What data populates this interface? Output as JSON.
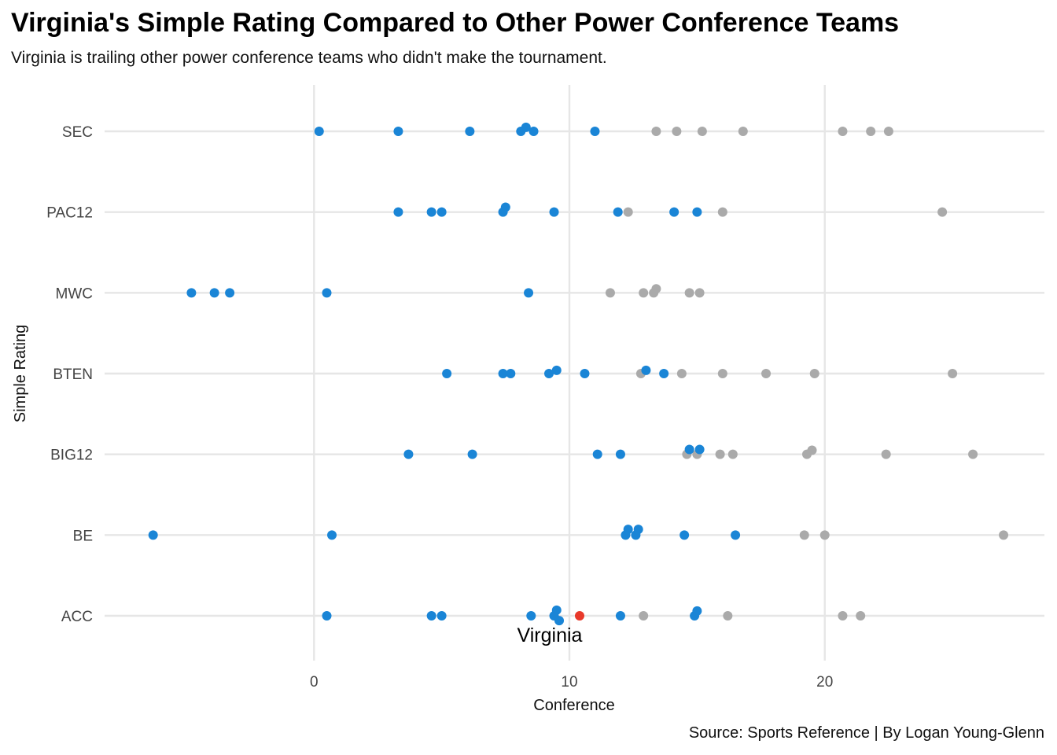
{
  "chart_data": {
    "type": "scatter",
    "title": "Virginia's Simple Rating Compared to Other Power Conference Teams",
    "subtitle": "Virginia is trailing other power conference teams who didn't make the tournament.",
    "caption": "Source: Sports Reference | By Logan Young-Glenn",
    "xlabel": "Conference",
    "ylabel": "Simple Rating",
    "categories": [
      "ACC",
      "BE",
      "BIG12",
      "BTEN",
      "MWC",
      "PAC12",
      "SEC"
    ],
    "xlim": [
      -8.2,
      28.6
    ],
    "xticks": [
      0,
      10,
      20
    ],
    "grid": true,
    "legend": "none",
    "colors": {
      "blue": "#1a85d6",
      "gray": "#aaaaaa",
      "highlight": "#e8392a",
      "grid": "#e6e6e6"
    },
    "annotation": {
      "label": "Virginia",
      "x": 10.4,
      "category": "ACC"
    },
    "series": [
      {
        "color": "gray",
        "points": [
          {
            "cat": "SEC",
            "x": 13.4,
            "j": 0
          },
          {
            "cat": "SEC",
            "x": 14.2,
            "j": 0
          },
          {
            "cat": "SEC",
            "x": 15.2,
            "j": 0
          },
          {
            "cat": "SEC",
            "x": 16.8,
            "j": 0
          },
          {
            "cat": "SEC",
            "x": 20.7,
            "j": 0
          },
          {
            "cat": "SEC",
            "x": 21.8,
            "j": 0
          },
          {
            "cat": "SEC",
            "x": 22.5,
            "j": 0
          },
          {
            "cat": "PAC12",
            "x": 12.3,
            "j": 0
          },
          {
            "cat": "PAC12",
            "x": 16.0,
            "j": 0
          },
          {
            "cat": "PAC12",
            "x": 24.6,
            "j": 0
          },
          {
            "cat": "MWC",
            "x": 11.6,
            "j": 0
          },
          {
            "cat": "MWC",
            "x": 12.9,
            "j": 0
          },
          {
            "cat": "MWC",
            "x": 13.3,
            "j": 0
          },
          {
            "cat": "MWC",
            "x": 13.4,
            "j": -0.05
          },
          {
            "cat": "MWC",
            "x": 14.7,
            "j": 0
          },
          {
            "cat": "MWC",
            "x": 15.1,
            "j": 0
          },
          {
            "cat": "BTEN",
            "x": 12.8,
            "j": 0
          },
          {
            "cat": "BTEN",
            "x": 14.4,
            "j": 0
          },
          {
            "cat": "BTEN",
            "x": 16.0,
            "j": 0
          },
          {
            "cat": "BTEN",
            "x": 17.7,
            "j": 0
          },
          {
            "cat": "BTEN",
            "x": 19.6,
            "j": 0
          },
          {
            "cat": "BTEN",
            "x": 25.0,
            "j": 0
          },
          {
            "cat": "BIG12",
            "x": 14.6,
            "j": 0
          },
          {
            "cat": "BIG12",
            "x": 15.0,
            "j": 0
          },
          {
            "cat": "BIG12",
            "x": 15.9,
            "j": 0
          },
          {
            "cat": "BIG12",
            "x": 16.4,
            "j": 0
          },
          {
            "cat": "BIG12",
            "x": 19.3,
            "j": 0
          },
          {
            "cat": "BIG12",
            "x": 19.5,
            "j": -0.05
          },
          {
            "cat": "BIG12",
            "x": 22.4,
            "j": 0
          },
          {
            "cat": "BIG12",
            "x": 25.8,
            "j": 0
          },
          {
            "cat": "BE",
            "x": 19.2,
            "j": 0
          },
          {
            "cat": "BE",
            "x": 20.0,
            "j": 0
          },
          {
            "cat": "BE",
            "x": 27.0,
            "j": 0
          },
          {
            "cat": "ACC",
            "x": 12.9,
            "j": 0
          },
          {
            "cat": "ACC",
            "x": 16.2,
            "j": 0
          },
          {
            "cat": "ACC",
            "x": 20.7,
            "j": 0
          },
          {
            "cat": "ACC",
            "x": 21.4,
            "j": 0
          }
        ]
      },
      {
        "color": "blue",
        "points": [
          {
            "cat": "SEC",
            "x": 0.2,
            "j": 0
          },
          {
            "cat": "SEC",
            "x": 3.3,
            "j": 0
          },
          {
            "cat": "SEC",
            "x": 6.1,
            "j": 0
          },
          {
            "cat": "SEC",
            "x": 8.1,
            "j": 0
          },
          {
            "cat": "SEC",
            "x": 8.3,
            "j": -0.05
          },
          {
            "cat": "SEC",
            "x": 8.6,
            "j": 0
          },
          {
            "cat": "SEC",
            "x": 11.0,
            "j": 0
          },
          {
            "cat": "PAC12",
            "x": 3.3,
            "j": 0
          },
          {
            "cat": "PAC12",
            "x": 4.6,
            "j": 0
          },
          {
            "cat": "PAC12",
            "x": 5.0,
            "j": 0
          },
          {
            "cat": "PAC12",
            "x": 7.4,
            "j": 0
          },
          {
            "cat": "PAC12",
            "x": 7.5,
            "j": -0.06
          },
          {
            "cat": "PAC12",
            "x": 9.4,
            "j": 0
          },
          {
            "cat": "PAC12",
            "x": 11.9,
            "j": 0
          },
          {
            "cat": "PAC12",
            "x": 14.1,
            "j": 0
          },
          {
            "cat": "PAC12",
            "x": 15.0,
            "j": 0
          },
          {
            "cat": "MWC",
            "x": -4.8,
            "j": 0
          },
          {
            "cat": "MWC",
            "x": -3.9,
            "j": 0
          },
          {
            "cat": "MWC",
            "x": -3.3,
            "j": 0
          },
          {
            "cat": "MWC",
            "x": 0.5,
            "j": 0
          },
          {
            "cat": "MWC",
            "x": 8.4,
            "j": 0
          },
          {
            "cat": "BTEN",
            "x": 5.2,
            "j": 0
          },
          {
            "cat": "BTEN",
            "x": 7.4,
            "j": 0
          },
          {
            "cat": "BTEN",
            "x": 7.7,
            "j": 0
          },
          {
            "cat": "BTEN",
            "x": 9.2,
            "j": 0
          },
          {
            "cat": "BTEN",
            "x": 9.5,
            "j": -0.04
          },
          {
            "cat": "BTEN",
            "x": 10.6,
            "j": 0
          },
          {
            "cat": "BTEN",
            "x": 13.0,
            "j": -0.04
          },
          {
            "cat": "BTEN",
            "x": 13.7,
            "j": 0
          },
          {
            "cat": "BIG12",
            "x": 3.7,
            "j": 0
          },
          {
            "cat": "BIG12",
            "x": 6.2,
            "j": 0
          },
          {
            "cat": "BIG12",
            "x": 11.1,
            "j": 0
          },
          {
            "cat": "BIG12",
            "x": 12.0,
            "j": 0
          },
          {
            "cat": "BIG12",
            "x": 14.7,
            "j": -0.06
          },
          {
            "cat": "BIG12",
            "x": 15.1,
            "j": -0.06
          },
          {
            "cat": "BE",
            "x": -6.3,
            "j": 0
          },
          {
            "cat": "BE",
            "x": 0.7,
            "j": 0
          },
          {
            "cat": "BE",
            "x": 12.2,
            "j": 0
          },
          {
            "cat": "BE",
            "x": 12.3,
            "j": -0.07
          },
          {
            "cat": "BE",
            "x": 12.6,
            "j": 0
          },
          {
            "cat": "BE",
            "x": 12.7,
            "j": -0.07
          },
          {
            "cat": "BE",
            "x": 14.5,
            "j": 0
          },
          {
            "cat": "BE",
            "x": 16.5,
            "j": 0
          },
          {
            "cat": "ACC",
            "x": 0.5,
            "j": 0
          },
          {
            "cat": "ACC",
            "x": 4.6,
            "j": 0
          },
          {
            "cat": "ACC",
            "x": 5.0,
            "j": 0
          },
          {
            "cat": "ACC",
            "x": 8.5,
            "j": 0
          },
          {
            "cat": "ACC",
            "x": 9.4,
            "j": 0
          },
          {
            "cat": "ACC",
            "x": 9.5,
            "j": -0.07
          },
          {
            "cat": "ACC",
            "x": 9.6,
            "j": 0.06
          },
          {
            "cat": "ACC",
            "x": 12.0,
            "j": 0
          },
          {
            "cat": "ACC",
            "x": 14.9,
            "j": 0
          },
          {
            "cat": "ACC",
            "x": 15.0,
            "j": -0.06
          }
        ]
      },
      {
        "color": "highlight",
        "points": [
          {
            "cat": "ACC",
            "x": 10.4,
            "j": 0
          }
        ]
      }
    ]
  }
}
